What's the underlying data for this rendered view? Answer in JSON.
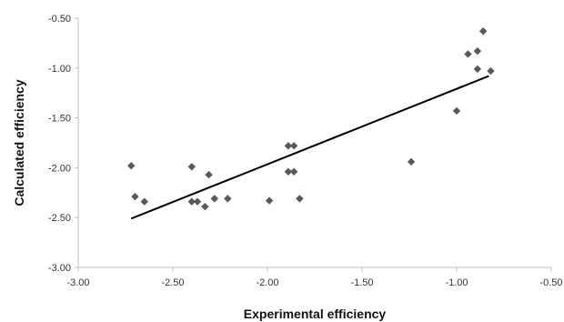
{
  "chart_data": {
    "type": "scatter",
    "title": "",
    "xlabel": "Experimental efficiency",
    "ylabel": "Calculated efficiency",
    "xlim": [
      -3.0,
      -0.5
    ],
    "ylim": [
      -3.0,
      -0.5
    ],
    "x_ticks": [
      "-3.00",
      "-2.50",
      "-2.00",
      "-1.50",
      "-1.00",
      "-0.50"
    ],
    "y_ticks": [
      "-0.50",
      "-1.00",
      "-1.50",
      "-2.00",
      "-2.50",
      "-3.00"
    ],
    "grid": false,
    "legend": "none",
    "marker": "diamond",
    "marker_color": "#595959",
    "line_color": "#000000",
    "series": [
      {
        "type": "scatter",
        "points": [
          [
            -2.72,
            -1.98
          ],
          [
            -2.7,
            -2.29
          ],
          [
            -2.65,
            -2.34
          ],
          [
            -2.4,
            -1.99
          ],
          [
            -2.4,
            -2.34
          ],
          [
            -2.37,
            -2.34
          ],
          [
            -2.33,
            -2.39
          ],
          [
            -2.31,
            -2.07
          ],
          [
            -2.28,
            -2.31
          ],
          [
            -2.21,
            -2.31
          ],
          [
            -1.99,
            -2.33
          ],
          [
            -1.89,
            -1.78
          ],
          [
            -1.89,
            -2.04
          ],
          [
            -1.86,
            -1.78
          ],
          [
            -1.86,
            -2.04
          ],
          [
            -1.83,
            -2.31
          ],
          [
            -1.24,
            -1.94
          ],
          [
            -1.0,
            -1.43
          ],
          [
            -0.94,
            -0.86
          ],
          [
            -0.89,
            -0.83
          ],
          [
            -0.89,
            -1.01
          ],
          [
            -0.86,
            -0.63
          ],
          [
            -0.82,
            -1.03
          ]
        ]
      },
      {
        "type": "line",
        "points": [
          [
            -2.72,
            -2.51
          ],
          [
            -0.83,
            -1.08
          ]
        ]
      }
    ]
  }
}
